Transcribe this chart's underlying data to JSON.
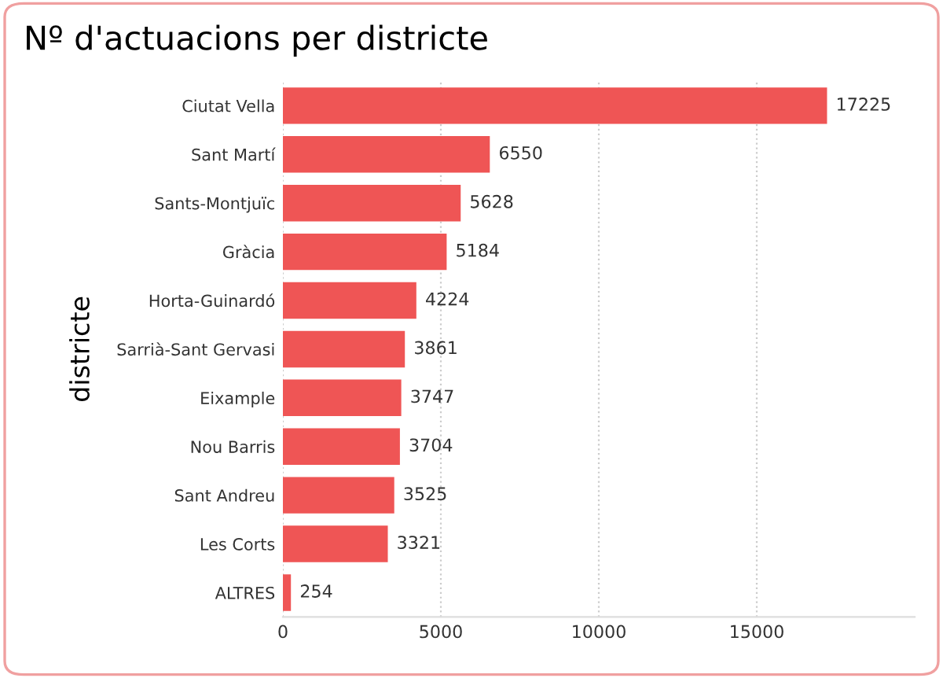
{
  "chart_data": {
    "type": "bar",
    "orientation": "horizontal",
    "title": "Nº d'actuacions per districte",
    "ylabel": "districte",
    "categories": [
      "Ciutat Vella",
      "Sant Martí",
      "Sants-Montjuïc",
      "Gràcia",
      "Horta-Guinardó",
      "Sarrià-Sant Gervasi",
      "Eixample",
      "Nou Barris",
      "Sant Andreu",
      "Les Corts",
      "ALTRES"
    ],
    "values": [
      17225,
      6550,
      5628,
      5184,
      4224,
      3861,
      3747,
      3704,
      3525,
      3321,
      254
    ],
    "color": "#ef5555",
    "xlim": [
      0,
      20000
    ],
    "xticks": [
      0,
      5000,
      10000,
      15000
    ],
    "grid": "x",
    "data_labels": true,
    "legend": false
  }
}
